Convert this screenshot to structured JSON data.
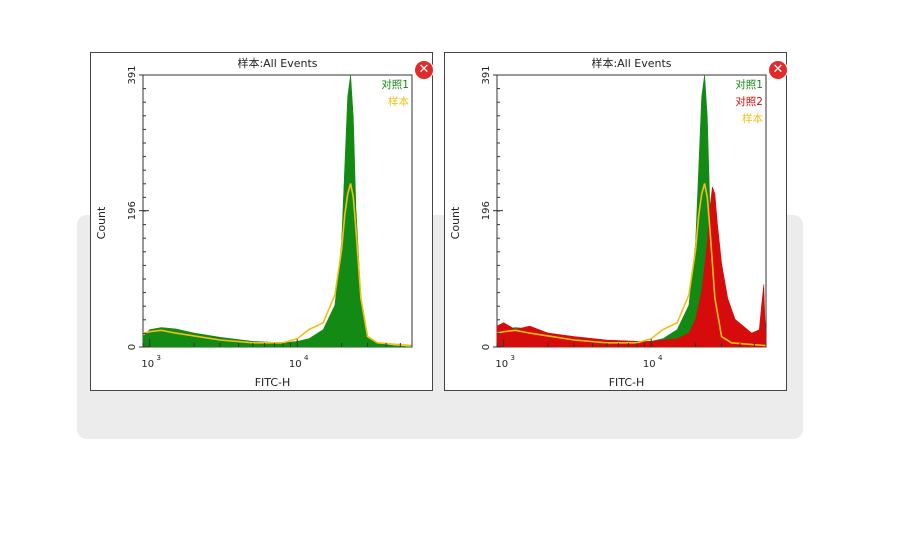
{
  "colors": {
    "green": "#138a13",
    "red": "#d60c0c",
    "yellow": "#f2bf12",
    "close": "#e02b2b"
  },
  "chart_data": [
    {
      "type": "area",
      "title": "样本:All Events",
      "xlabel": "FITC-H",
      "ylabel": "Count",
      "x_scale": "log",
      "xlim": [
        900,
        60000
      ],
      "ylim": [
        0,
        391
      ],
      "yticks": [
        "0",
        "196",
        "391"
      ],
      "xticks": [
        {
          "value": 1000,
          "base": "10",
          "exp": "3"
        },
        {
          "value": 10000,
          "base": "10",
          "exp": "4"
        }
      ],
      "legend_position": "top-right",
      "legend": [
        {
          "name": "对照1",
          "color": "#138a13"
        },
        {
          "name": "样本",
          "color": "#f2bf12"
        }
      ],
      "series": [
        {
          "name": "对照1",
          "style": "filled",
          "color": "#138a13",
          "x": [
            900,
            1000,
            1200,
            1500,
            2000,
            3000,
            5000,
            8000,
            10000,
            12000,
            15000,
            18000,
            20000,
            21000,
            22000,
            23000,
            24000,
            25000,
            27000,
            30000,
            35000,
            45000,
            60000
          ],
          "y": [
            15,
            25,
            28,
            26,
            20,
            14,
            8,
            6,
            8,
            12,
            25,
            60,
            150,
            260,
            360,
            391,
            330,
            200,
            70,
            15,
            5,
            2,
            0
          ]
        },
        {
          "name": "样本",
          "style": "line",
          "color": "#f2bf12",
          "x": [
            900,
            1000,
            1200,
            1500,
            2000,
            3000,
            5000,
            8000,
            10000,
            12000,
            15000,
            18000,
            20000,
            21000,
            22000,
            23000,
            24000,
            25000,
            27000,
            30000,
            35000,
            45000,
            60000
          ],
          "y": [
            20,
            22,
            24,
            20,
            16,
            10,
            6,
            6,
            12,
            25,
            35,
            75,
            140,
            190,
            220,
            235,
            215,
            170,
            70,
            15,
            6,
            4,
            2
          ]
        }
      ]
    },
    {
      "type": "area",
      "title": "样本:All Events",
      "xlabel": "FITC-H",
      "ylabel": "Count",
      "x_scale": "log",
      "xlim": [
        900,
        60000
      ],
      "ylim": [
        0,
        391
      ],
      "yticks": [
        "0",
        "196",
        "391"
      ],
      "xticks": [
        {
          "value": 1000,
          "base": "10",
          "exp": "3"
        },
        {
          "value": 10000,
          "base": "10",
          "exp": "4"
        }
      ],
      "legend_position": "top-right",
      "legend": [
        {
          "name": "对照1",
          "color": "#138a13"
        },
        {
          "name": "对照2",
          "color": "#d60c0c"
        },
        {
          "name": "样本",
          "color": "#f2bf12"
        }
      ],
      "series": [
        {
          "name": "对照1",
          "style": "filled",
          "color": "#138a13",
          "x": [
            900,
            1000,
            1200,
            1500,
            2000,
            3000,
            5000,
            8000,
            10000,
            12000,
            15000,
            18000,
            20000,
            21000,
            22000,
            23000,
            24000,
            25000,
            27000,
            30000,
            35000,
            45000,
            60000
          ],
          "y": [
            15,
            25,
            28,
            26,
            20,
            14,
            8,
            6,
            8,
            12,
            25,
            60,
            150,
            260,
            360,
            391,
            330,
            200,
            70,
            15,
            5,
            2,
            0
          ]
        },
        {
          "name": "对照2",
          "style": "filled",
          "color": "#d60c0c",
          "x": [
            900,
            1000,
            1200,
            1500,
            2000,
            3000,
            5000,
            8000,
            10000,
            12000,
            15000,
            18000,
            20000,
            22000,
            24000,
            25000,
            26000,
            27000,
            28000,
            30000,
            33000,
            37000,
            42000,
            48000,
            54000,
            56000,
            58000,
            59000,
            60000
          ],
          "y": [
            30,
            35,
            25,
            30,
            20,
            15,
            10,
            8,
            8,
            10,
            12,
            20,
            40,
            80,
            150,
            200,
            230,
            220,
            180,
            120,
            70,
            40,
            30,
            20,
            25,
            60,
            90,
            40,
            10
          ]
        },
        {
          "name": "样本",
          "style": "line",
          "color": "#f2bf12",
          "x": [
            900,
            1000,
            1200,
            1500,
            2000,
            3000,
            5000,
            8000,
            10000,
            12000,
            15000,
            18000,
            20000,
            21000,
            22000,
            23000,
            24000,
            25000,
            27000,
            30000,
            35000,
            45000,
            60000
          ],
          "y": [
            20,
            22,
            24,
            20,
            16,
            10,
            6,
            6,
            12,
            25,
            35,
            75,
            140,
            190,
            220,
            235,
            215,
            170,
            70,
            15,
            6,
            4,
            2
          ]
        }
      ]
    }
  ]
}
